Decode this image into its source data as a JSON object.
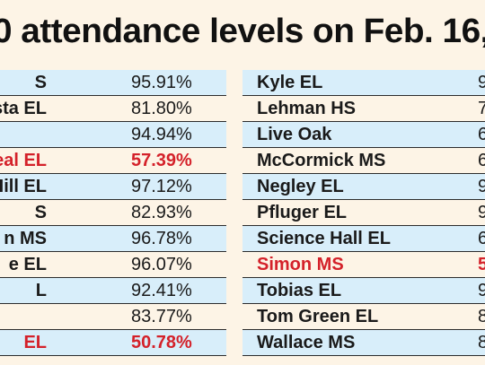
{
  "title": "0 attendance levels on Feb. 16,",
  "left_rows": [
    {
      "name": "S",
      "value": "95.91%",
      "alert": false
    },
    {
      "name": "sta EL",
      "value": "81.80%",
      "alert": false
    },
    {
      "name": "",
      "value": "94.94%",
      "alert": false
    },
    {
      "name": "eal EL",
      "value": "57.39%",
      "alert": true
    },
    {
      "name": "r Hill EL",
      "value": "97.12%",
      "alert": false
    },
    {
      "name": "S",
      "value": "82.93%",
      "alert": false
    },
    {
      "name": "n MS",
      "value": "96.78%",
      "alert": false
    },
    {
      "name": "e EL",
      "value": "96.07%",
      "alert": false
    },
    {
      "name": "L",
      "value": "92.41%",
      "alert": false
    },
    {
      "name": "",
      "value": "83.77%",
      "alert": false
    },
    {
      "name": "EL",
      "value": "50.78%",
      "alert": true
    }
  ],
  "right_rows": [
    {
      "name": "Kyle EL",
      "value": "9",
      "alert": false
    },
    {
      "name": "Lehman HS",
      "value": "7",
      "alert": false
    },
    {
      "name": "Live Oak",
      "value": "6",
      "alert": false
    },
    {
      "name": "McCormick MS",
      "value": "6",
      "alert": false
    },
    {
      "name": "Negley EL",
      "value": "9",
      "alert": false
    },
    {
      "name": "Pfluger EL",
      "value": "9",
      "alert": false
    },
    {
      "name": "Science Hall EL",
      "value": "6",
      "alert": false
    },
    {
      "name": "Simon MS",
      "value": "5",
      "alert": true
    },
    {
      "name": "Tobias EL",
      "value": "9",
      "alert": false
    },
    {
      "name": "Tom Green EL",
      "value": "8",
      "alert": false
    },
    {
      "name": "Wallace MS",
      "value": "8",
      "alert": false
    }
  ],
  "colors": {
    "background": "#fdf4e6",
    "shaded_row": "#d8eefa",
    "alert_text": "#d4212a",
    "text": "#1a1a1a"
  }
}
